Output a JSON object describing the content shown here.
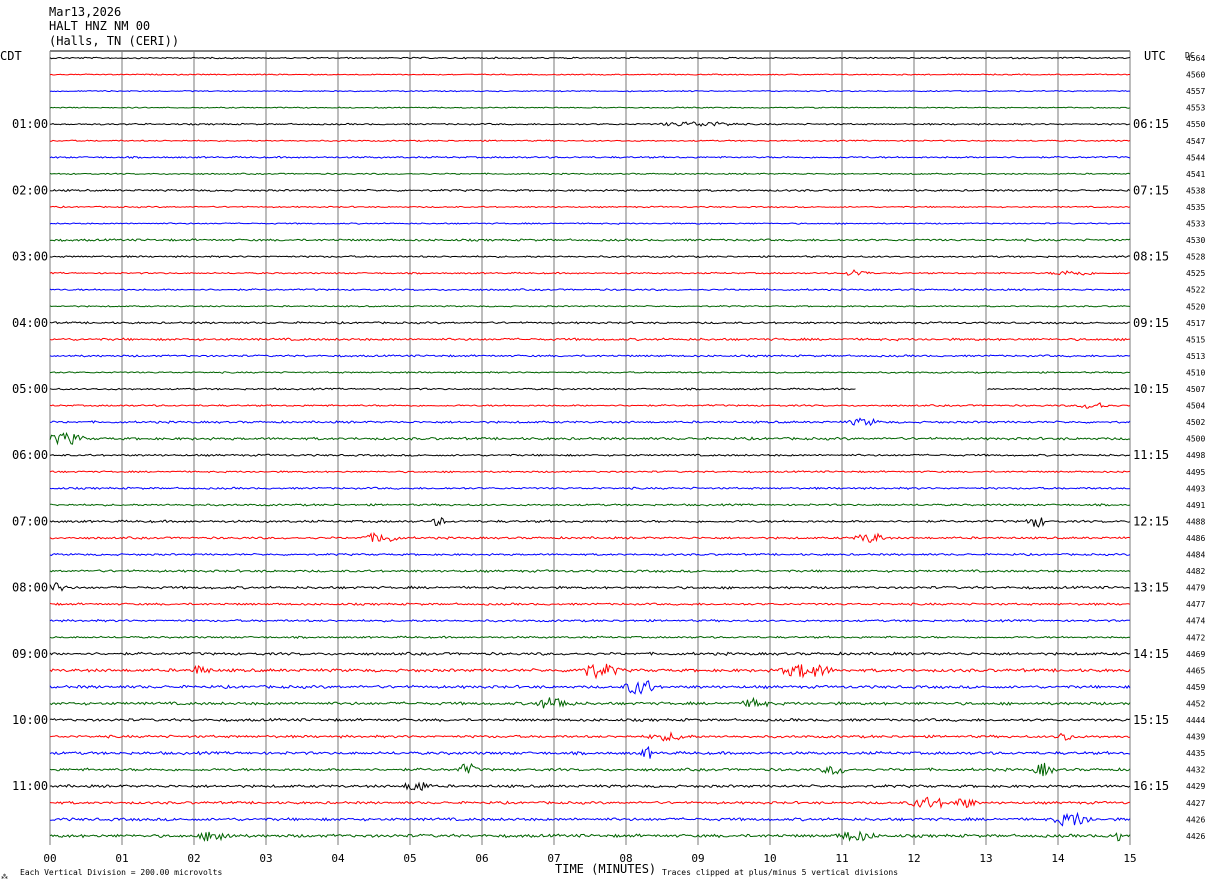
{
  "header": {
    "date": "Mar13,2026",
    "station": "HALT HNZ NM 00",
    "location": "(Halls, TN (CERI))"
  },
  "left_tz": "CDT",
  "right_tz": "UTC",
  "dc_label": "DC",
  "colors": {
    "background": "#ffffff",
    "grid": "#000000",
    "traces": [
      "#000000",
      "#ff0000",
      "#0000ff",
      "#006400"
    ]
  },
  "chart_data": {
    "type": "line",
    "xlabel": "TIME (MINUTES)",
    "xlim": [
      0,
      15
    ],
    "x_ticks": [
      "00",
      "01",
      "02",
      "03",
      "04",
      "05",
      "06",
      "07",
      "08",
      "09",
      "10",
      "11",
      "12",
      "13",
      "14",
      "15"
    ],
    "rows_per_hour": 4,
    "left_hour_labels": [
      "01:00",
      "02:00",
      "03:00",
      "04:00",
      "05:00",
      "06:00",
      "07:00",
      "08:00",
      "09:00",
      "10:00",
      "11:00"
    ],
    "right_hour_labels": [
      "06:15",
      "07:15",
      "08:15",
      "09:15",
      "10:15",
      "11:15",
      "12:15",
      "13:15",
      "14:15",
      "15:15",
      "16:15"
    ],
    "dc_offsets": [
      4564,
      4560,
      4557,
      4553,
      4550,
      4547,
      4544,
      4541,
      4538,
      4535,
      4533,
      4530,
      4528,
      4525,
      4522,
      4520,
      4517,
      4515,
      4513,
      4510,
      4507,
      4504,
      4502,
      4500,
      4498,
      4495,
      4493,
      4491,
      4488,
      4486,
      4484,
      4482,
      4479,
      4477,
      4474,
      4472,
      4469,
      4465,
      4459,
      4452,
      4444,
      4439,
      4435,
      4432,
      4429,
      4427,
      4426,
      4426
    ],
    "row_noise_level": [
      0.8,
      0.6,
      0.6,
      0.6,
      0.8,
      0.7,
      0.9,
      0.7,
      1.0,
      0.7,
      0.7,
      1.1,
      0.9,
      0.8,
      0.9,
      0.7,
      1.0,
      1.2,
      1.0,
      0.8,
      0.9,
      0.9,
      1.1,
      1.3,
      1.0,
      0.9,
      1.0,
      1.0,
      1.2,
      1.1,
      1.0,
      1.2,
      1.3,
      1.1,
      1.1,
      1.0,
      1.4,
      1.6,
      1.5,
      1.5,
      1.4,
      1.3,
      1.5,
      1.4,
      1.4,
      1.3,
      1.5,
      1.6
    ],
    "events": [
      {
        "row": 4,
        "minute": 9.0,
        "duration": 1.2,
        "amplitude": 2
      },
      {
        "row": 13,
        "minute": 11.2,
        "duration": 0.4,
        "amplitude": 3
      },
      {
        "row": 13,
        "minute": 14.2,
        "duration": 0.7,
        "amplitude": 2
      },
      {
        "row": 21,
        "minute": 14.5,
        "duration": 0.5,
        "amplitude": 3
      },
      {
        "row": 22,
        "minute": 11.3,
        "duration": 0.5,
        "amplitude": 3
      },
      {
        "row": 23,
        "minute": 0.2,
        "duration": 0.6,
        "amplitude": 5
      },
      {
        "row": 28,
        "minute": 5.4,
        "duration": 0.2,
        "amplitude": 4
      },
      {
        "row": 28,
        "minute": 13.7,
        "duration": 0.3,
        "amplitude": 5
      },
      {
        "row": 29,
        "minute": 4.6,
        "duration": 0.6,
        "amplitude": 4
      },
      {
        "row": 29,
        "minute": 11.4,
        "duration": 0.5,
        "amplitude": 4
      },
      {
        "row": 32,
        "minute": 0.1,
        "duration": 0.3,
        "amplitude": 4
      },
      {
        "row": 37,
        "minute": 7.6,
        "duration": 0.7,
        "amplitude": 6
      },
      {
        "row": 37,
        "minute": 10.5,
        "duration": 0.8,
        "amplitude": 6
      },
      {
        "row": 37,
        "minute": 2.1,
        "duration": 0.3,
        "amplitude": 4
      },
      {
        "row": 38,
        "minute": 8.2,
        "duration": 0.5,
        "amplitude": 7
      },
      {
        "row": 39,
        "minute": 7.0,
        "duration": 0.6,
        "amplitude": 5
      },
      {
        "row": 39,
        "minute": 9.8,
        "duration": 0.4,
        "amplitude": 4
      },
      {
        "row": 41,
        "minute": 8.6,
        "duration": 0.7,
        "amplitude": 3
      },
      {
        "row": 41,
        "minute": 14.1,
        "duration": 0.3,
        "amplitude": 4
      },
      {
        "row": 42,
        "minute": 8.3,
        "duration": 0.2,
        "amplitude": 5
      },
      {
        "row": 43,
        "minute": 5.8,
        "duration": 0.3,
        "amplitude": 5
      },
      {
        "row": 43,
        "minute": 10.9,
        "duration": 0.4,
        "amplitude": 4
      },
      {
        "row": 43,
        "minute": 13.8,
        "duration": 0.3,
        "amplitude": 6
      },
      {
        "row": 44,
        "minute": 5.1,
        "duration": 0.4,
        "amplitude": 5
      },
      {
        "row": 45,
        "minute": 12.2,
        "duration": 0.6,
        "amplitude": 5
      },
      {
        "row": 45,
        "minute": 12.7,
        "duration": 0.4,
        "amplitude": 4
      },
      {
        "row": 46,
        "minute": 14.2,
        "duration": 0.6,
        "amplitude": 6
      },
      {
        "row": 47,
        "minute": 2.3,
        "duration": 0.5,
        "amplitude": 5
      },
      {
        "row": 47,
        "minute": 11.2,
        "duration": 0.6,
        "amplitude": 4
      },
      {
        "row": 47,
        "minute": 14.8,
        "duration": 0.2,
        "amplitude": 5
      }
    ],
    "gaps": [
      {
        "row": 20,
        "start": 11.2,
        "end": 13.0
      }
    ]
  },
  "footer": {
    "scale": "Each Vertical Division =  200.00 microvolts",
    "clip_note": "Traces clipped at plus/minus 5 vertical divisions",
    "corner_mark": "⁂"
  }
}
